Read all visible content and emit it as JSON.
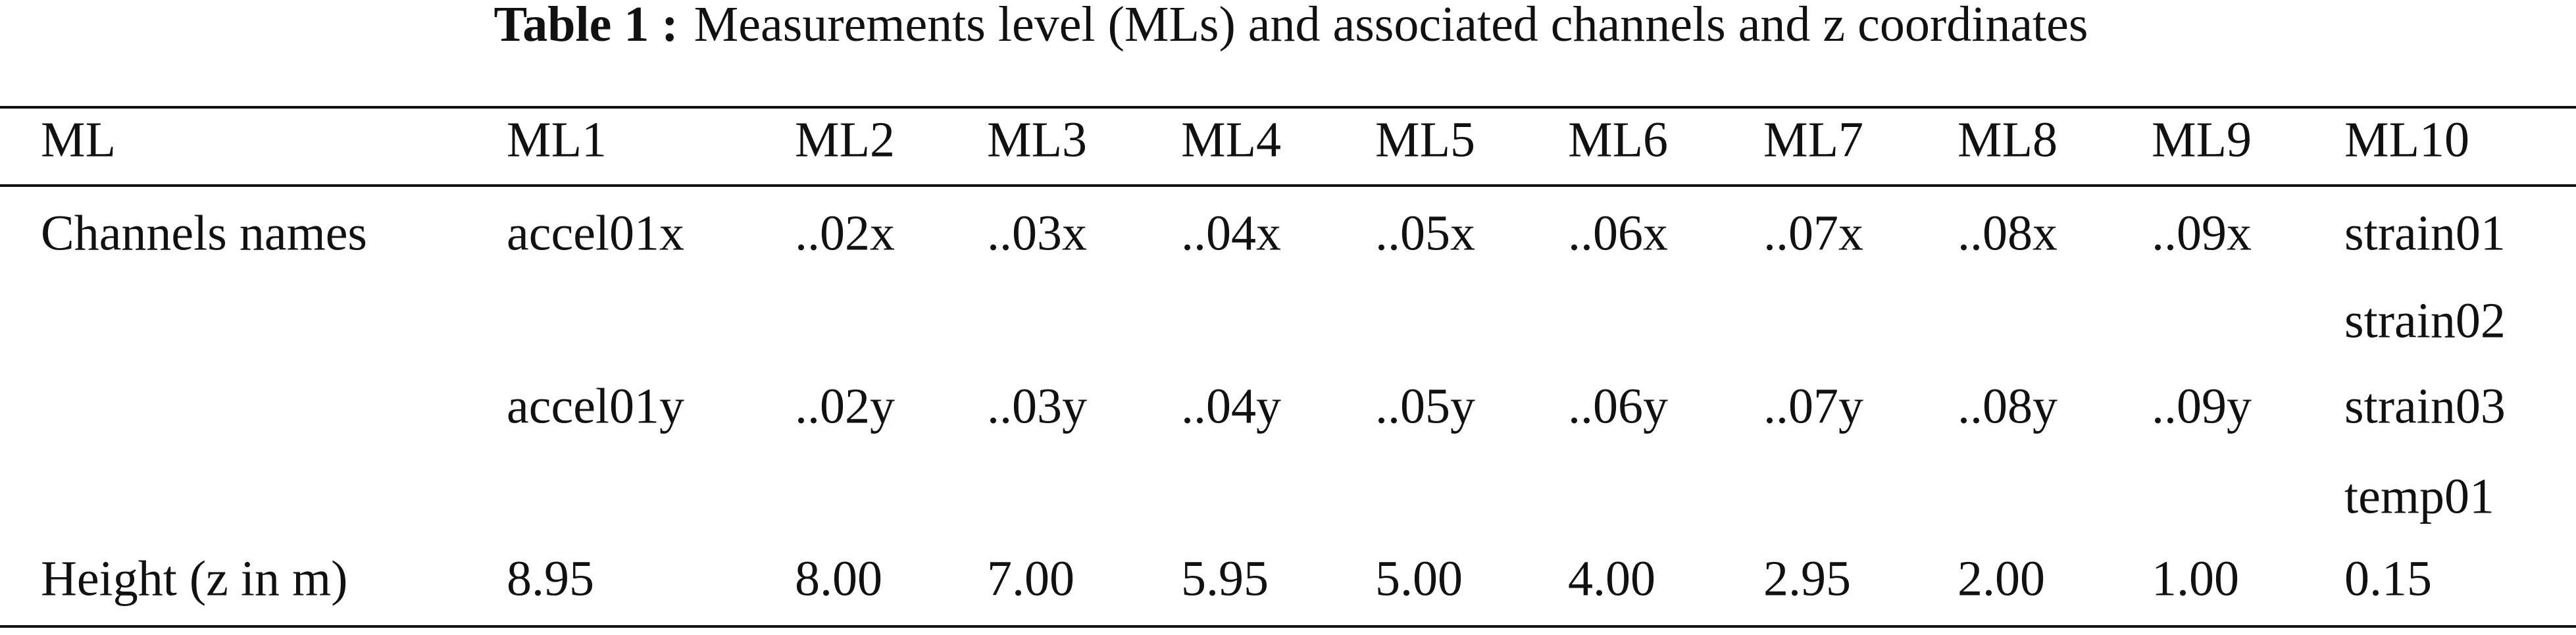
{
  "caption": {
    "label": "Table 1 :",
    "text": "Measurements level (MLs) and associated channels and z coordinates"
  },
  "table": {
    "header": [
      "ML",
      "ML1",
      "ML2",
      "ML3",
      "ML4",
      "ML5",
      "ML6",
      "ML7",
      "ML8",
      "ML9",
      "ML10"
    ],
    "rows": [
      [
        "Channels names",
        "accel01x",
        "..02x",
        "..03x",
        "..04x",
        "..05x",
        "..06x",
        "..07x",
        "..08x",
        "..09x",
        "strain01"
      ],
      [
        null,
        null,
        null,
        null,
        null,
        null,
        null,
        null,
        null,
        null,
        "strain02"
      ],
      [
        null,
        "accel01y",
        "..02y",
        "..03y",
        "..04y",
        "..05y",
        "..06y",
        "..07y",
        "..08y",
        "..09y",
        "strain03"
      ],
      [
        null,
        null,
        null,
        null,
        null,
        null,
        null,
        null,
        null,
        null,
        "temp01"
      ],
      [
        "Height (z in m)",
        "8.95",
        "8.00",
        "7.00",
        "5.95",
        "5.00",
        "4.00",
        "2.95",
        "2.00",
        "1.00",
        "0.15"
      ]
    ]
  }
}
